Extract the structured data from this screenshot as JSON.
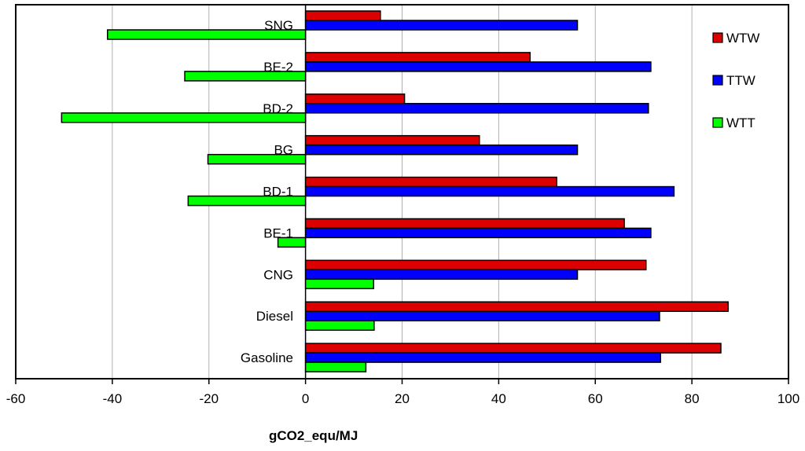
{
  "chart_data": {
    "type": "bar",
    "orientation": "horizontal",
    "categories": [
      "Gasoline",
      "Diesel",
      "CNG",
      "BE-1",
      "BD-1",
      "BG",
      "BD-2",
      "BE-2",
      "SNG"
    ],
    "series": [
      {
        "name": "WTW",
        "color": "#dd0000",
        "values": [
          86,
          87.5,
          70.5,
          66,
          52,
          36,
          20.5,
          46.5,
          15.5
        ]
      },
      {
        "name": "TTW",
        "color": "#0000ff",
        "values": [
          73.5,
          73.3,
          56.3,
          71.5,
          76.3,
          56.3,
          71,
          71.5,
          56.3
        ]
      },
      {
        "name": "WTT",
        "color": "#00ff00",
        "values": [
          12.5,
          14.2,
          14.1,
          -5.7,
          -24.3,
          -20.2,
          -50.5,
          -25,
          -41
        ]
      }
    ],
    "xlabel": "gCO2_equ/MJ",
    "xlim": [
      -60,
      100
    ],
    "xticks": [
      "-60",
      "-40",
      "-20",
      "0",
      "20",
      "40",
      "60",
      "80",
      "100"
    ],
    "grid": "vertical",
    "legend": "right"
  }
}
